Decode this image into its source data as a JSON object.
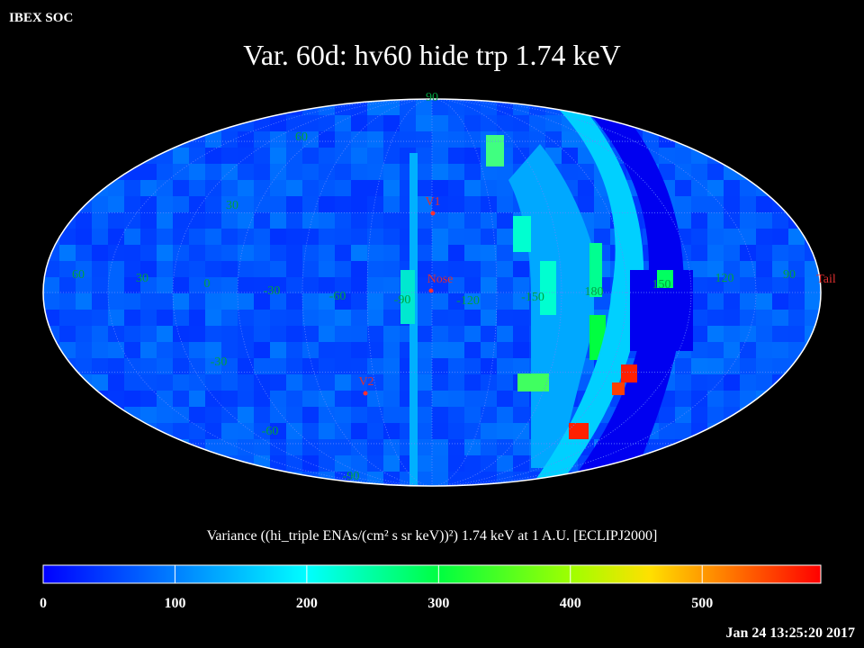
{
  "header": {
    "source": "IBEX SOC",
    "title": "Var. 60d: hv60 hide trp 1.74 keV",
    "timestamp": "Jan 24 13:25:20 2017"
  },
  "map": {
    "lat_labels": [
      "90",
      "60",
      "30",
      "-30",
      "-60",
      "-90"
    ],
    "lon_labels": [
      "60",
      "30",
      "0",
      "-30",
      "-60",
      "-90",
      "-120",
      "-150",
      "180",
      "150",
      "120",
      "90"
    ],
    "markers": [
      "V1",
      "Nose",
      "V2",
      "Tail"
    ]
  },
  "colorbar": {
    "label": "Variance ((hi_triple ENAs/(cm² s sr keV))²) 1.74 keV at 1 A.U. [ECLIPJ2000]",
    "range": [
      0,
      590
    ],
    "ticks": [
      0,
      100,
      200,
      300,
      400,
      500
    ]
  }
}
